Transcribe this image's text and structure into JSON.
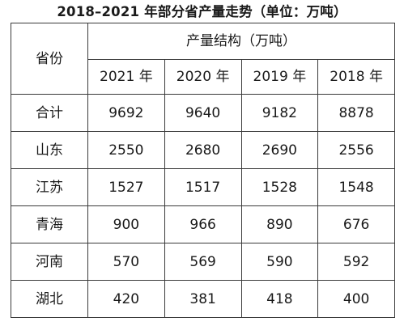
{
  "title": "2018–2021 年部分省产量走势（单位：万吨）",
  "table": {
    "province_header": "省份",
    "group_header": "产量结构（万吨）",
    "years": [
      "2021 年",
      "2020 年",
      "2019 年",
      "2018 年"
    ],
    "rows": [
      {
        "province": "合计",
        "values": [
          "9692",
          "9640",
          "9182",
          "8878"
        ]
      },
      {
        "province": "山东",
        "values": [
          "2550",
          "2680",
          "2690",
          "2556"
        ]
      },
      {
        "province": "江苏",
        "values": [
          "1527",
          "1517",
          "1528",
          "1548"
        ]
      },
      {
        "province": "青海",
        "values": [
          "900",
          "966",
          "890",
          "676"
        ]
      },
      {
        "province": "河南",
        "values": [
          "570",
          "569",
          "590",
          "592"
        ]
      },
      {
        "province": "湖北",
        "values": [
          "420",
          "381",
          "418",
          "400"
        ]
      }
    ]
  },
  "chart_data": {
    "type": "table",
    "title": "2018–2021 年部分省产量走势（单位：万吨）",
    "columns": [
      "省份",
      "2021 年",
      "2020 年",
      "2019 年",
      "2018 年"
    ],
    "rows": [
      [
        "合计",
        9692,
        9640,
        9182,
        8878
      ],
      [
        "山东",
        2550,
        2680,
        2690,
        2556
      ],
      [
        "江苏",
        1527,
        1517,
        1528,
        1548
      ],
      [
        "青海",
        900,
        966,
        890,
        676
      ],
      [
        "河南",
        570,
        569,
        590,
        592
      ],
      [
        "湖北",
        420,
        381,
        418,
        400
      ]
    ]
  }
}
